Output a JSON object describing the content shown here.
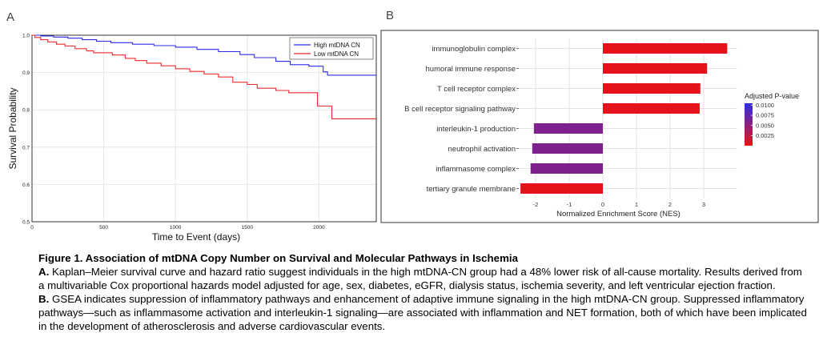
{
  "panel_a": {
    "letter": "A"
  },
  "panel_b": {
    "letter": "B"
  },
  "chart_data": [
    {
      "type": "line",
      "title": "",
      "xlabel": "Time to Event (days)",
      "ylabel": "Survival Probability",
      "xlim": [
        0,
        2400
      ],
      "ylim": [
        0.5,
        1.0
      ],
      "x_ticks": [
        0,
        500,
        1000,
        1500,
        2000
      ],
      "y_ticks": [
        0.5,
        0.6,
        0.7,
        0.8,
        0.9,
        1.0
      ],
      "x_tick_labels": [
        "0",
        "500",
        "1000",
        "1500",
        "2000"
      ],
      "y_tick_labels": [
        "0.5",
        "0.6",
        "0.7",
        "0.8",
        "0.9",
        "1.0"
      ],
      "grid": true,
      "legend_position": "top-right",
      "series": [
        {
          "name": "High mtDNA CN",
          "color": "#2b2bee",
          "step": true,
          "points": [
            [
              0,
              1.0
            ],
            [
              60,
              1.0
            ],
            [
              60,
              0.998
            ],
            [
              150,
              0.998
            ],
            [
              150,
              0.995
            ],
            [
              250,
              0.995
            ],
            [
              250,
              0.992
            ],
            [
              350,
              0.992
            ],
            [
              350,
              0.988
            ],
            [
              450,
              0.988
            ],
            [
              450,
              0.984
            ],
            [
              550,
              0.984
            ],
            [
              550,
              0.98
            ],
            [
              700,
              0.98
            ],
            [
              700,
              0.976
            ],
            [
              850,
              0.976
            ],
            [
              850,
              0.972
            ],
            [
              1000,
              0.972
            ],
            [
              1000,
              0.968
            ],
            [
              1150,
              0.968
            ],
            [
              1150,
              0.962
            ],
            [
              1300,
              0.962
            ],
            [
              1300,
              0.956
            ],
            [
              1450,
              0.956
            ],
            [
              1450,
              0.948
            ],
            [
              1550,
              0.948
            ],
            [
              1550,
              0.94
            ],
            [
              1700,
              0.94
            ],
            [
              1700,
              0.93
            ],
            [
              1800,
              0.93
            ],
            [
              1800,
              0.921
            ],
            [
              1930,
              0.921
            ],
            [
              1930,
              0.917
            ],
            [
              2030,
              0.917
            ],
            [
              2030,
              0.902
            ],
            [
              2060,
              0.902
            ],
            [
              2060,
              0.893
            ],
            [
              2400,
              0.893
            ]
          ]
        },
        {
          "name": "Low mtDNA CN",
          "color": "#ee2b2b",
          "step": true,
          "points": [
            [
              0,
              1.0
            ],
            [
              20,
              1.0
            ],
            [
              20,
              0.994
            ],
            [
              60,
              0.994
            ],
            [
              60,
              0.988
            ],
            [
              110,
              0.988
            ],
            [
              110,
              0.982
            ],
            [
              170,
              0.982
            ],
            [
              170,
              0.976
            ],
            [
              230,
              0.976
            ],
            [
              230,
              0.971
            ],
            [
              300,
              0.971
            ],
            [
              300,
              0.964
            ],
            [
              380,
              0.964
            ],
            [
              380,
              0.958
            ],
            [
              430,
              0.958
            ],
            [
              430,
              0.953
            ],
            [
              560,
              0.953
            ],
            [
              560,
              0.947
            ],
            [
              650,
              0.947
            ],
            [
              650,
              0.938
            ],
            [
              720,
              0.938
            ],
            [
              720,
              0.932
            ],
            [
              800,
              0.932
            ],
            [
              800,
              0.925
            ],
            [
              900,
              0.925
            ],
            [
              900,
              0.918
            ],
            [
              1000,
              0.918
            ],
            [
              1000,
              0.91
            ],
            [
              1100,
              0.91
            ],
            [
              1100,
              0.903
            ],
            [
              1200,
              0.903
            ],
            [
              1200,
              0.896
            ],
            [
              1300,
              0.896
            ],
            [
              1300,
              0.888
            ],
            [
              1400,
              0.888
            ],
            [
              1400,
              0.874
            ],
            [
              1500,
              0.874
            ],
            [
              1500,
              0.868
            ],
            [
              1570,
              0.868
            ],
            [
              1570,
              0.858
            ],
            [
              1700,
              0.858
            ],
            [
              1700,
              0.852
            ],
            [
              1790,
              0.852
            ],
            [
              1790,
              0.846
            ],
            [
              1990,
              0.846
            ],
            [
              1990,
              0.81
            ],
            [
              2090,
              0.81
            ],
            [
              2090,
              0.776
            ],
            [
              2400,
              0.776
            ]
          ]
        }
      ]
    },
    {
      "type": "bar",
      "orientation": "horizontal",
      "title": "",
      "xlabel": "Normalized Enrichment Score (NES)",
      "ylabel": "",
      "xlim": [
        -2.5,
        4.0
      ],
      "x_ticks": [
        -2,
        -1,
        0,
        1,
        2,
        3
      ],
      "x_tick_labels": [
        "-2",
        "-1",
        "0",
        "1",
        "2",
        "3"
      ],
      "grid": true,
      "categories": [
        "immunoglobulin complex",
        "humoral immune response",
        "T cell receptor complex",
        "B cell receptor signaling pathway",
        "interleukin-1 production",
        "neutrophil activation",
        "inflammasome complex",
        "tertiary granule membrane"
      ],
      "values": [
        3.7,
        3.1,
        2.9,
        2.88,
        -2.05,
        -2.1,
        -2.15,
        -2.45
      ],
      "adjusted_p": [
        0.0005,
        0.0005,
        0.0005,
        0.0005,
        0.006,
        0.006,
        0.006,
        0.0005
      ],
      "legend": {
        "title": "Adjusted P-value",
        "position": "right",
        "range": [
          0.0,
          0.0105
        ],
        "ticks": [
          0.01,
          0.0075,
          0.005,
          0.0025
        ],
        "tick_labels": [
          "0.0100",
          "0.0075",
          "0.0050",
          "0.0025"
        ],
        "color_high": "#2b2bee",
        "color_low": "#ee1111"
      }
    }
  ],
  "caption": {
    "title": "Figure 1. Association of mtDNA Copy Number on Survival and Molecular Pathways in Ischemia",
    "a_label": "A.",
    "a_text": " Kaplan–Meier survival curve and hazard ratio suggest individuals in the high mtDNA-CN group had a 48% lower risk of all-cause mortality. Results derived from a multivariable Cox proportional hazards model adjusted for age, sex, diabetes, eGFR, dialysis status, ischemia severity, and left ventricular ejection fraction.",
    "b_label": "B.",
    "b_text": " GSEA indicates suppression of inflammatory pathways and enhancement of adaptive immune signaling in the high mtDNA-CN group. Suppressed inflammatory pathways—such as inflammasome activation and interleukin-1 signaling—are associated with inflammation and NET formation, both of which have been implicated in the development of atherosclerosis and adverse cardiovascular events."
  }
}
